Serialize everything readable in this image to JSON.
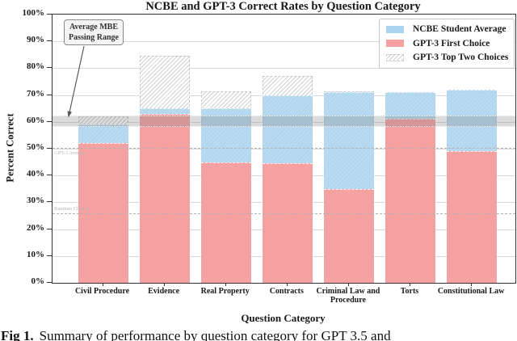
{
  "title": "NCBE and GPT-3 Correct Rates by Question Category",
  "caption": {
    "prefix": "Fig 1.",
    "text": "Summary of performance by question category for GPT 3.5 and"
  },
  "chart_data": {
    "type": "bar",
    "title": "NCBE and GPT-3 Correct Rates by Question Category",
    "xlabel": "Question Category",
    "ylabel": "Percent Correct",
    "ylim": [
      0,
      100
    ],
    "y_tick_labels": [
      "0%",
      "10%",
      "20%",
      "30%",
      "40%",
      "50%",
      "60%",
      "70%",
      "80%",
      "90%",
      "100%"
    ],
    "grid": "horizontal",
    "legend_position": "upper right",
    "bar_layout": "overlaid (top-two hatched bar behind, NCBE blue over it, GPT-3 first-choice red in front)",
    "categories": [
      "Civil Procedure",
      "Evidence",
      "Real Property",
      "Contracts",
      "Criminal Law and Procedure",
      "Torts",
      "Constitutional Law"
    ],
    "series": [
      {
        "name": "NCBE Student Average",
        "color": "#aad4ef",
        "values": [
          59,
          65,
          65,
          70,
          71,
          71,
          72
        ]
      },
      {
        "name": "GPT-3 First Choice",
        "color": "#f5a1a1",
        "values": [
          52,
          63,
          45,
          44.5,
          35,
          61,
          49
        ]
      },
      {
        "name": "GPT-3 Top Two Choices",
        "color": "#d0d0d0",
        "pattern": "diagonal-hatch",
        "values": [
          62,
          84.5,
          71.5,
          77,
          71.5,
          71,
          71.5
        ]
      }
    ],
    "annotations": {
      "passing_band": {
        "label_line1": "Average MBE",
        "label_line2": "Passing Range",
        "from_pct": 58,
        "to_pct": 62.5
      },
      "gpt3_average_line": {
        "label": "GPT-3 Average",
        "value_pct": 50
      },
      "random_chance_line": {
        "label": "Random Chance",
        "value_pct": 25.5
      }
    }
  }
}
